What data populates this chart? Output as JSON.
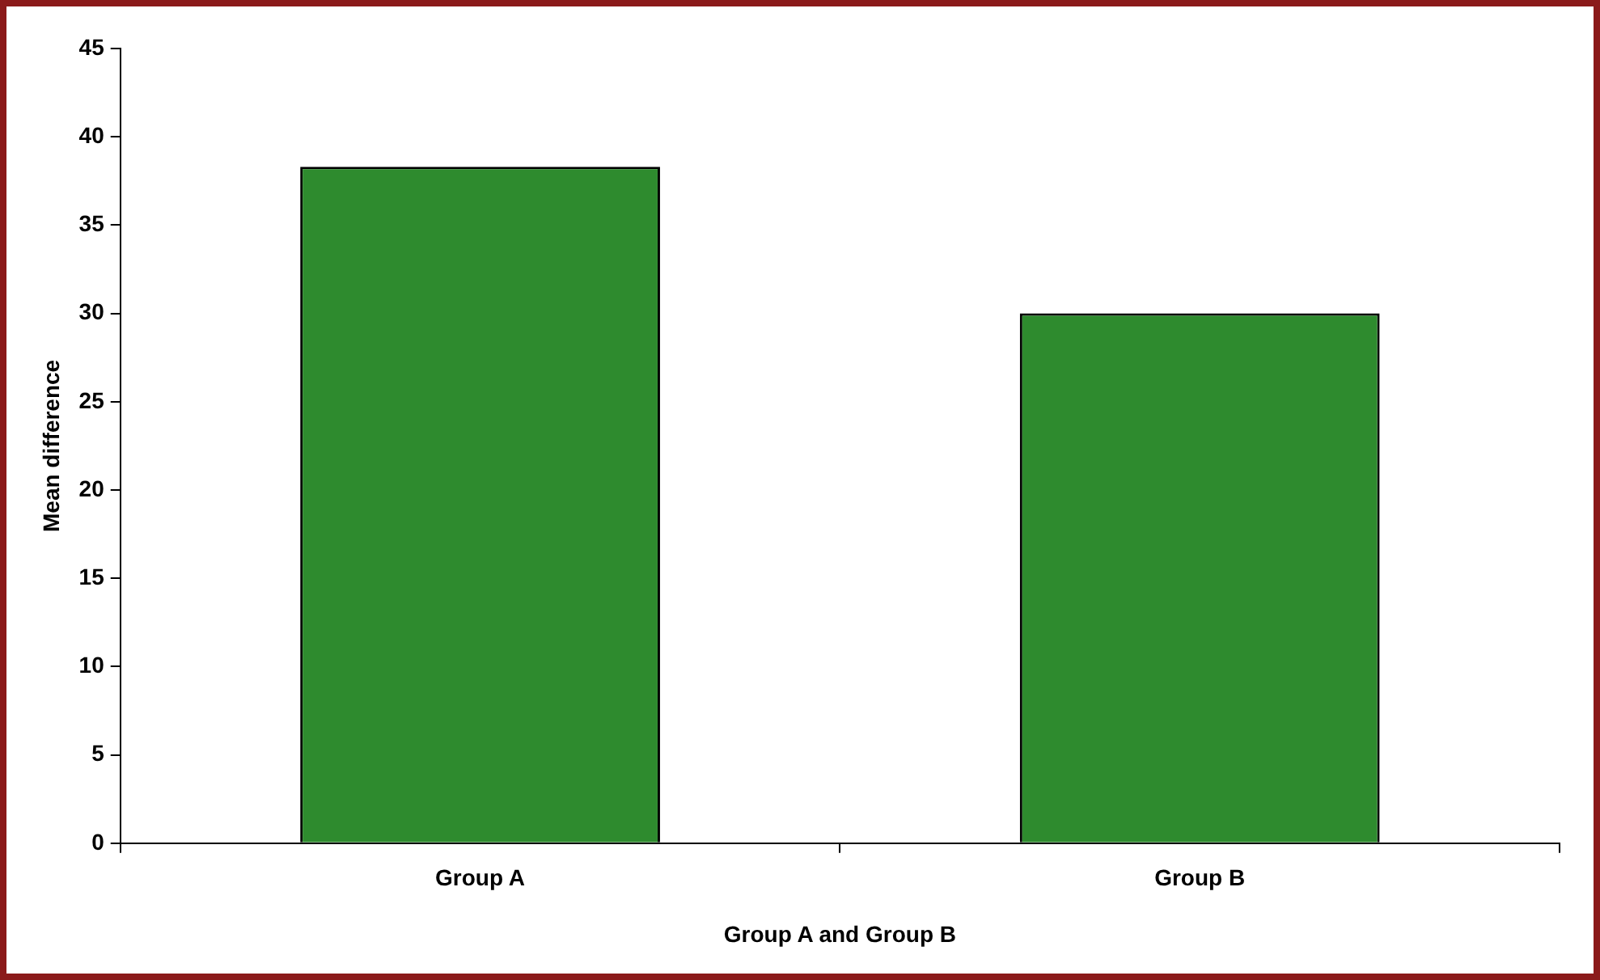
{
  "chart_data": {
    "type": "bar",
    "xlabel": "Group A and Group B",
    "ylabel": "Mean difference",
    "categories": [
      "Group A",
      "Group B"
    ],
    "values": [
      38.3,
      30
    ],
    "color": "#2e8b2e",
    "ylim": [
      0,
      45
    ],
    "yticks": [
      0,
      5,
      10,
      15,
      20,
      25,
      30,
      35,
      40,
      45
    ],
    "grid": false,
    "legend": false
  }
}
